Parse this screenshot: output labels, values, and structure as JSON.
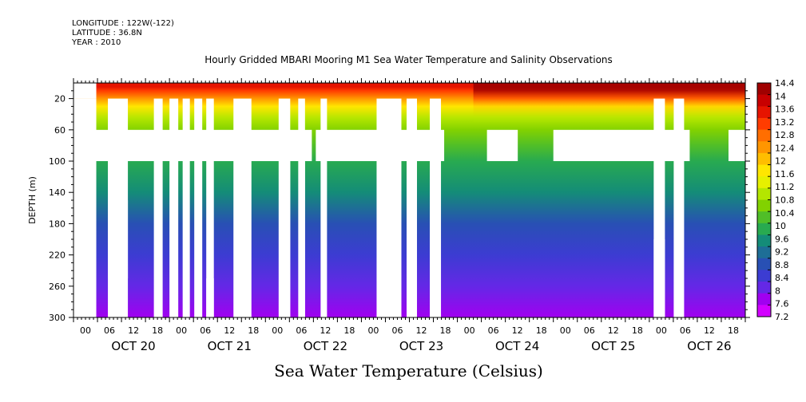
{
  "header": {
    "longitude": "LONGITUDE : 122W(-122)",
    "latitude": "LATITUDE : 36.8N",
    "year": "YEAR : 2010"
  },
  "chart_data": {
    "type": "heatmap",
    "title": "Hourly Gridded MBARI Mooring M1 Sea Water Temperature and Salinity Observations",
    "subtitle": "Sea Water Temperature (Celsius)",
    "ylabel": "DEPTH (m)",
    "ylim": [
      300,
      0
    ],
    "yticks": [
      20,
      60,
      100,
      140,
      180,
      220,
      260,
      300
    ],
    "x_hours": [
      "00",
      "06",
      "12",
      "18",
      "00",
      "06",
      "12",
      "18",
      "00",
      "06",
      "12",
      "18",
      "00",
      "06",
      "12",
      "18",
      "00",
      "06",
      "12",
      "18",
      "00",
      "06",
      "12",
      "18",
      "00",
      "06",
      "12",
      "18"
    ],
    "x_days": [
      "OCT 20",
      "OCT 21",
      "OCT 22",
      "OCT 23",
      "OCT 24",
      "OCT 25",
      "OCT 26"
    ],
    "xrange_hours": [
      0,
      168
    ],
    "colorbar": {
      "labels": [
        "14.4",
        "14",
        "13.6",
        "13.2",
        "12.8",
        "12.4",
        "12",
        "11.6",
        "11.2",
        "10.8",
        "10.4",
        "10",
        "9.6",
        "9.2",
        "8.8",
        "8.4",
        "8",
        "7.6",
        "7.2"
      ],
      "colors": [
        "#a00000",
        "#c80000",
        "#e61400",
        "#ff3c00",
        "#ff6e00",
        "#ff9600",
        "#ffbe00",
        "#ffe600",
        "#e6f000",
        "#b4e600",
        "#82d200",
        "#50be28",
        "#28aa50",
        "#148c78",
        "#1e6e96",
        "#2850b4",
        "#3c3cd2",
        "#6428e6",
        "#a000f0",
        "#d200ff"
      ],
      "min": 7.2,
      "max": 14.4
    },
    "profile": [
      {
        "depth": 5,
        "temp": 13.8
      },
      {
        "depth": 10,
        "temp": 13.3
      },
      {
        "depth": 20,
        "temp": 12.6
      },
      {
        "depth": 30,
        "temp": 11.8
      },
      {
        "depth": 45,
        "temp": 11.0
      },
      {
        "depth": 60,
        "temp": 10.5
      },
      {
        "depth": 80,
        "temp": 10.2
      },
      {
        "depth": 100,
        "temp": 9.8
      },
      {
        "depth": 140,
        "temp": 9.3
      },
      {
        "depth": 180,
        "temp": 8.9
      },
      {
        "depth": 220,
        "temp": 8.5
      },
      {
        "depth": 260,
        "temp": 8.1
      },
      {
        "depth": 300,
        "temp": 7.7
      }
    ],
    "missing_full": [
      [
        0,
        5.7
      ],
      [
        8.6,
        13.6
      ],
      [
        20.1,
        22.3
      ],
      [
        24.0,
        26.2
      ],
      [
        27.3,
        29.1
      ],
      [
        30.2,
        32.2
      ],
      [
        33.2,
        35.1
      ],
      [
        40.0,
        44.5
      ],
      [
        51.3,
        54.2
      ],
      [
        56.2,
        57.9
      ],
      [
        61.8,
        63.4
      ],
      [
        75.8,
        82.0
      ],
      [
        83.3,
        85.9
      ],
      [
        89.1,
        91.9
      ],
      [
        145.1,
        147.9
      ],
      [
        150.1,
        152.7
      ]
    ],
    "missing_partial": [
      {
        "x": [
          8.6,
          13.6
        ],
        "depth": [
          150,
          250
        ]
      },
      {
        "x": [
          33.2,
          35.1
        ],
        "depth": [
          250,
          300
        ]
      },
      {
        "x": [
          145.1,
          147.9
        ],
        "depth": [
          200,
          300
        ]
      }
    ],
    "missing_band": [
      {
        "x": [
          0,
          59.6
        ],
        "depth": [
          60,
          100
        ]
      },
      {
        "x": [
          60.6,
          92.7
        ],
        "depth": [
          60,
          100
        ]
      },
      {
        "x": [
          103.4,
          111.1
        ],
        "depth": [
          60,
          100
        ]
      },
      {
        "x": [
          120.0,
          154.1
        ],
        "depth": [
          60,
          100
        ]
      },
      {
        "x": [
          163.8,
          168
        ],
        "depth": [
          60,
          100
        ]
      }
    ],
    "thin_gaps": [
      {
        "x": [
          53.3,
          54.2
        ],
        "depth": [
          100,
          300
        ]
      },
      {
        "x": [
          57.0,
          57.9
        ],
        "depth": [
          100,
          300
        ]
      }
    ],
    "warm_surface": [
      {
        "x": [
          100,
          168
        ],
        "depth": [
          0,
          50
        ],
        "delta": 1.2
      }
    ]
  }
}
